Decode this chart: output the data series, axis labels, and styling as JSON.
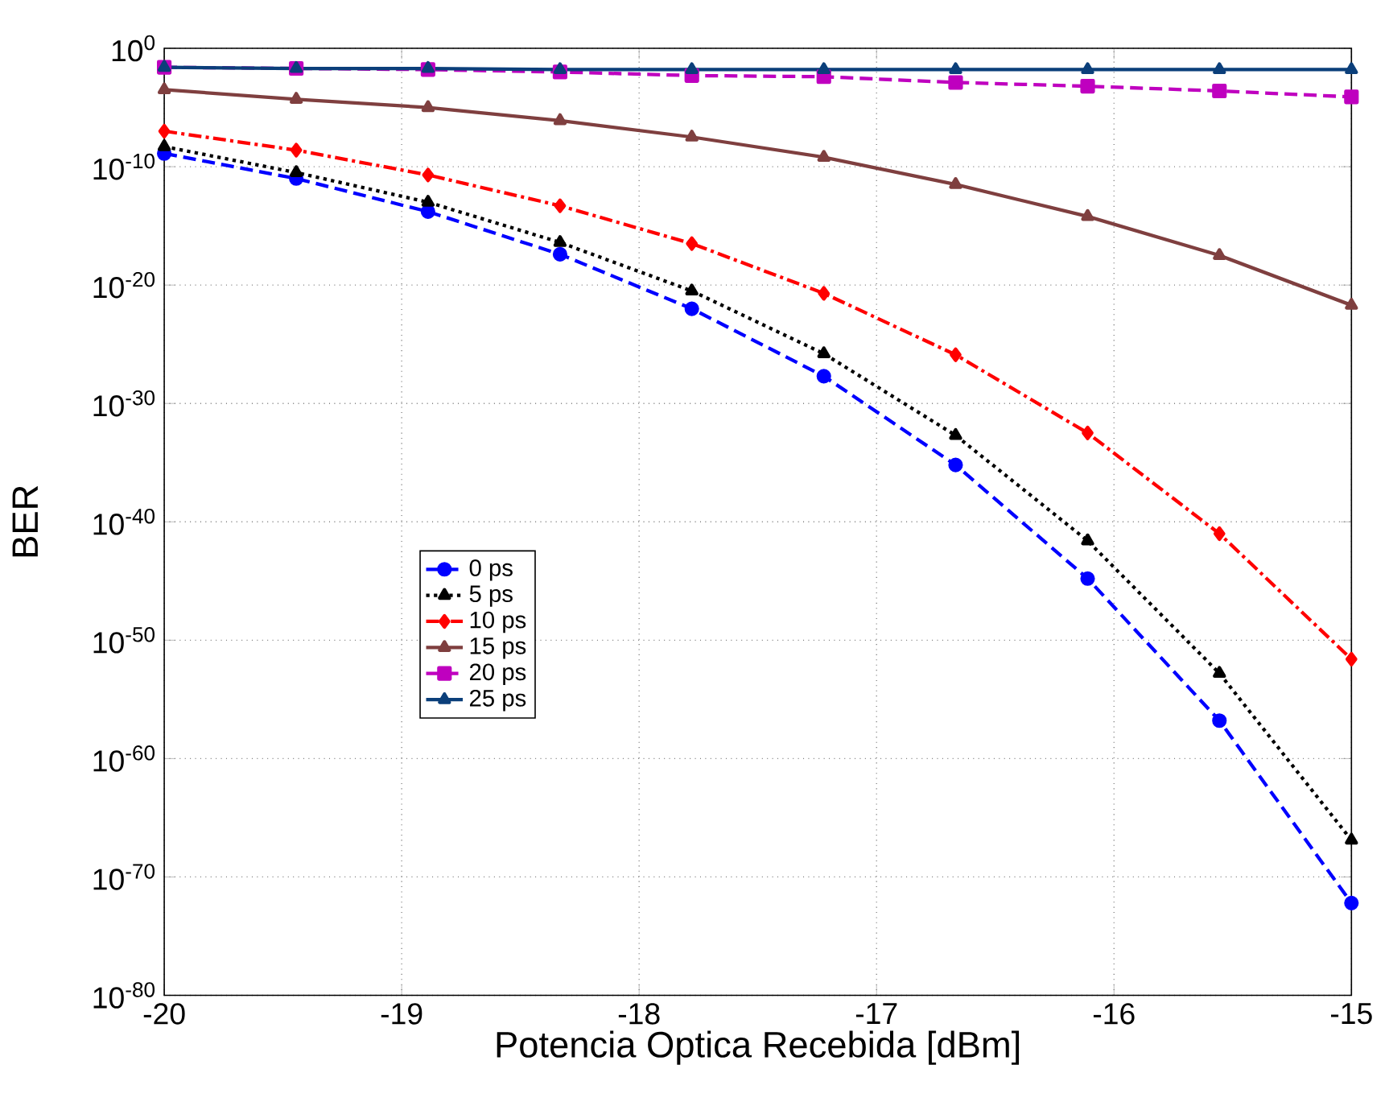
{
  "chart_data": {
    "type": "line",
    "xlabel": "Potencia Optica Recebida [dBm]",
    "ylabel": "BER",
    "x": [
      -20,
      -19.444,
      -18.889,
      -18.333,
      -17.778,
      -17.222,
      -16.667,
      -16.111,
      -15.556,
      -15
    ],
    "xlim": [
      -20,
      -15
    ],
    "xticks": [
      -20,
      -19,
      -18,
      -17,
      -16,
      -15
    ],
    "ylim": [
      1e-80,
      1
    ],
    "log": "y",
    "yticks": [
      {
        "value": 1,
        "label": "10$^{0}$"
      },
      {
        "value": 1e-10,
        "label": "10$^{-10}$"
      },
      {
        "value": 1e-20,
        "label": "10$^{-20}$"
      },
      {
        "value": 1e-30,
        "label": "10$^{-30}$"
      },
      {
        "value": 1e-40,
        "label": "10$^{-40}$"
      },
      {
        "value": 1e-50,
        "label": "10$^{-50}$"
      },
      {
        "value": 1e-60,
        "label": "10$^{-60}$"
      },
      {
        "value": 1e-70,
        "label": "10$^{-70}$"
      },
      {
        "value": 1e-80,
        "label": "10$^{-80}$"
      }
    ],
    "grid": true,
    "legend": "left",
    "series": [
      {
        "name": "0 ps",
        "color": "#0000ff",
        "line_style": "dashed",
        "marker": "circle",
        "values": [
          1.3e-09,
          1e-11,
          1.6e-14,
          4e-18,
          1e-22,
          2e-28,
          6.3e-36,
          1.6e-45,
          1.6e-57,
          6.3e-73
        ]
      },
      {
        "name": "5 ps",
        "color": "#000000",
        "line_style": "dotted",
        "marker": "triangle",
        "values": [
          5e-09,
          3.2e-11,
          1e-13,
          4e-17,
          3.2e-21,
          1.6e-26,
          2e-33,
          2.5e-42,
          1.6e-53,
          1.3e-67
        ]
      },
      {
        "name": "10 ps",
        "color": "#ff0000",
        "line_style": "dashdot",
        "marker": "diamond",
        "values": [
          1e-07,
          2.5e-09,
          2e-11,
          5e-14,
          3.2e-17,
          2e-21,
          1.3e-26,
          3.2e-33,
          1e-41,
          2.5e-52
        ]
      },
      {
        "name": "15 ps",
        "color": "#7f3f3f",
        "line_style": "solid",
        "marker": "triangle",
        "values": [
          0.00032,
          5e-05,
          1e-05,
          7.9e-07,
          3.2e-08,
          6.3e-10,
          3.2e-12,
          6.3e-15,
          3.2e-18,
          2e-22
        ]
      },
      {
        "name": "20 ps",
        "color": "#bf00bf",
        "line_style": "dashed",
        "marker": "square",
        "values": [
          0.025,
          0.02,
          0.016,
          0.01,
          0.005,
          0.004,
          0.0013,
          0.00063,
          0.00025,
          7.9e-05
        ]
      },
      {
        "name": "25 ps",
        "color": "#0b3f7a",
        "line_style": "solid",
        "marker": "triangle",
        "values": [
          0.025,
          0.02,
          0.02,
          0.016,
          0.016,
          0.016,
          0.016,
          0.016,
          0.016,
          0.016
        ]
      }
    ]
  }
}
